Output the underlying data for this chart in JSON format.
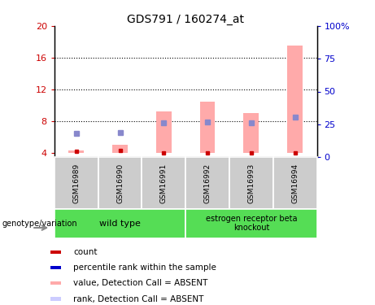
{
  "title": "GDS791 / 160274_at",
  "samples": [
    "GSM16989",
    "GSM16990",
    "GSM16991",
    "GSM16992",
    "GSM16993",
    "GSM16994"
  ],
  "pink_bars_bottom": [
    4.0,
    4.0,
    4.0,
    4.0,
    4.0,
    4.0
  ],
  "pink_bars_top": [
    4.35,
    5.05,
    9.2,
    10.5,
    9.0,
    17.5
  ],
  "blue_squares_y": [
    6.5,
    6.6,
    7.8,
    7.9,
    7.8,
    8.55
  ],
  "red_squares_y": [
    4.2,
    4.3,
    4.05,
    4.05,
    4.05,
    4.05
  ],
  "ylim_left": [
    3.5,
    20
  ],
  "ylim_right": [
    0,
    100
  ],
  "yticks_left": [
    4,
    8,
    12,
    16,
    20
  ],
  "yticks_right": [
    0,
    25,
    50,
    75,
    100
  ],
  "ytick_labels_left": [
    "4",
    "8",
    "12",
    "16",
    "20"
  ],
  "ytick_labels_right": [
    "0",
    "25",
    "50",
    "75",
    "100%"
  ],
  "left_tick_color": "#cc0000",
  "right_tick_color": "#0000cc",
  "pink_bar_color": "#ffaaaa",
  "blue_square_color": "#8888cc",
  "red_square_color": "#cc0000",
  "wildtype_samples": [
    0,
    1,
    2
  ],
  "knockout_samples": [
    3,
    4,
    5
  ],
  "group_color": "#55dd55",
  "gray_color": "#cccccc",
  "legend_labels": [
    "count",
    "percentile rank within the sample",
    "value, Detection Call = ABSENT",
    "rank, Detection Call = ABSENT"
  ],
  "legend_colors": [
    "#cc0000",
    "#0000cc",
    "#ffaaaa",
    "#ccccff"
  ],
  "dotted_line_y": [
    8,
    12,
    16
  ]
}
